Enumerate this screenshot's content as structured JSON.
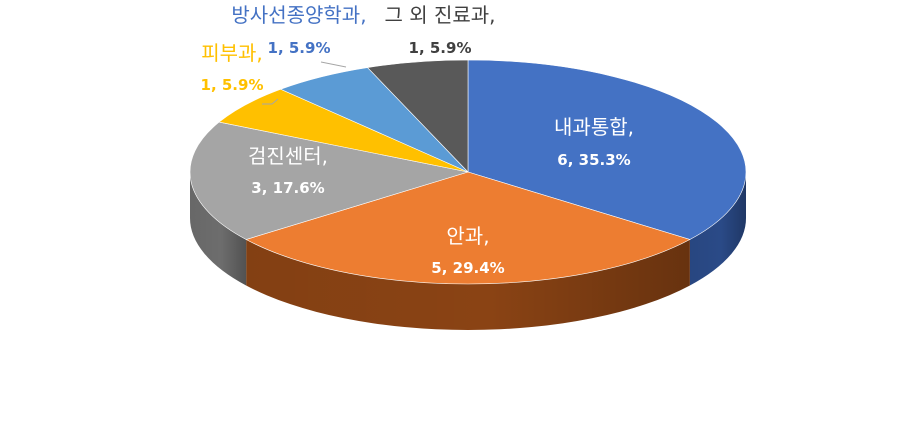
{
  "chart_data": {
    "type": "pie",
    "style": "3d",
    "title": "",
    "series": [
      {
        "values": [
          6,
          5,
          3,
          1,
          1,
          1
        ]
      }
    ],
    "categories": [
      "내과통합",
      "안과",
      "검진센터",
      "피부과",
      "방사선종양학과",
      "그 외 진료과"
    ],
    "slices": [
      {
        "label": "내과통합,",
        "value": 6,
        "percent_text": "6, 35.3%",
        "color": "#4472C4",
        "side_color": "#2a4a87",
        "label_color": "#ffffff"
      },
      {
        "label": "안과,",
        "value": 5,
        "percent_text": "5, 29.4%",
        "color": "#ED7D31",
        "side_color": "#8a4314",
        "label_color": "#ffffff"
      },
      {
        "label": "검진센터,",
        "value": 3,
        "percent_text": "3, 17.6%",
        "color": "#A5A5A5",
        "side_color": "#6d6d6d",
        "label_color": "#ffffff"
      },
      {
        "label": "피부과,",
        "value": 1,
        "percent_text": "1, 5.9%",
        "color": "#FFC000",
        "side_color": "#a77d00",
        "label_color": "#FFC000"
      },
      {
        "label": "방사선종양학과,",
        "value": 1,
        "percent_text": "1, 5.9%",
        "color": "#5B9BD5",
        "side_color": "#3a6a96",
        "label_color": "#4472C4"
      },
      {
        "label": "그 외 진료과,",
        "value": 1,
        "percent_text": "1, 5.9%",
        "color": "#595959",
        "side_color": "#3a3a3a",
        "label_color": "#404040"
      }
    ]
  }
}
